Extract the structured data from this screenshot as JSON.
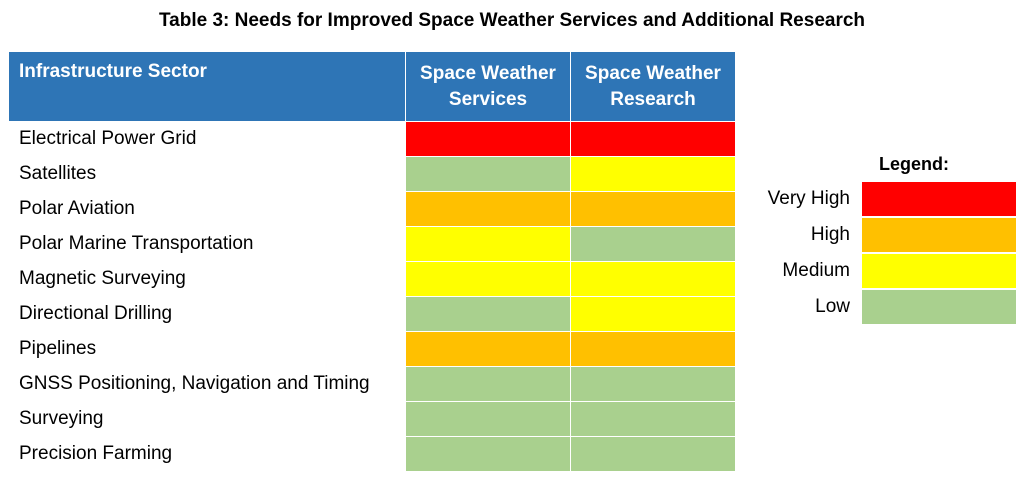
{
  "title": "Table 3: Needs for Improved Space Weather Services and Additional Research",
  "header": {
    "sector": "Infrastructure Sector",
    "services": "Space Weather Services",
    "research": "Space Weather Research"
  },
  "rows": [
    {
      "sector": "Electrical Power Grid",
      "services": "very-high",
      "research": "very-high"
    },
    {
      "sector": "Satellites",
      "services": "low",
      "research": "medium"
    },
    {
      "sector": "Polar Aviation",
      "services": "high",
      "research": "high"
    },
    {
      "sector": "Polar Marine Transportation",
      "services": "medium",
      "research": "low"
    },
    {
      "sector": "Magnetic Surveying",
      "services": "medium",
      "research": "medium"
    },
    {
      "sector": "Directional Drilling",
      "services": "low",
      "research": "medium"
    },
    {
      "sector": "Pipelines",
      "services": "high",
      "research": "high"
    },
    {
      "sector": "GNSS Positioning, Navigation and Timing",
      "services": "low",
      "research": "low"
    },
    {
      "sector": "Surveying",
      "services": "low",
      "research": "low"
    },
    {
      "sector": "Precision Farming",
      "services": "low",
      "research": "low"
    }
  ],
  "legend": {
    "title": "Legend:",
    "items": [
      {
        "label": "Very High",
        "level": "very-high",
        "color": "#ff0000"
      },
      {
        "label": "High",
        "level": "high",
        "color": "#ffc000"
      },
      {
        "label": "Medium",
        "level": "medium",
        "color": "#ffff00"
      },
      {
        "label": "Low",
        "level": "low",
        "color": "#a9d08e"
      }
    ]
  },
  "colors": {
    "header_background": "#2e75b6",
    "header_text": "#ffffff"
  }
}
